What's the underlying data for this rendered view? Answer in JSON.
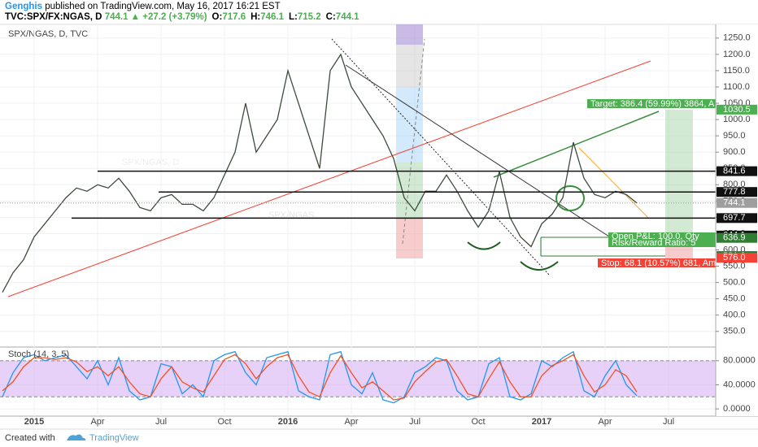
{
  "header": {
    "author": "Genghis",
    "published": "published on TradingView.com, May 16, 2017 16:21 EST",
    "symbol": "TVC:SPX/FX:NGAS, D",
    "last": 744.1,
    "change": "▲ +27.2 (+3.79%)",
    "ohlc": [
      {
        "label": "O:",
        "value": 717.6
      },
      {
        "label": "H:",
        "value": 746.1
      },
      {
        "label": "L:",
        "value": 715.2
      },
      {
        "label": "C:",
        "value": 744.1
      }
    ]
  },
  "footer": {
    "created": "Created with",
    "brand": "TradingView"
  },
  "chart_data": [
    {
      "type": "line",
      "title": "SPX/NGAS, D, TVC",
      "watermark": "SPX/NGAS, D",
      "watermark_small": "SPX/NGAS",
      "categories": [
        null,
        null,
        null,
        "2015",
        null,
        null,
        null,
        null,
        null,
        "Apr",
        null,
        null,
        null,
        null,
        null,
        "Jul",
        null,
        null,
        null,
        null,
        null,
        "Oct",
        null,
        null,
        null,
        null,
        null,
        "2016",
        null,
        null,
        null,
        null,
        null,
        "Apr",
        null,
        null,
        null,
        null,
        null,
        "Jul",
        null,
        null,
        null,
        null,
        null,
        "Oct",
        null,
        null,
        null,
        null,
        null,
        "2017",
        null,
        null,
        null,
        null,
        null,
        "Apr",
        null,
        null,
        null,
        null,
        null,
        "Jul",
        null,
        null,
        null,
        null
      ],
      "series": [
        {
          "color": "#3d4a3d",
          "values": [
            470,
            530,
            570,
            640,
            680,
            720,
            760,
            790,
            780,
            800,
            790,
            820,
            780,
            730,
            720,
            760,
            770,
            740,
            740,
            720,
            760,
            830,
            900,
            1050,
            900,
            950,
            1000,
            1150,
            1050,
            950,
            850,
            1150,
            1200,
            1100,
            1050,
            1000,
            950,
            880,
            760,
            720,
            780,
            780,
            830,
            780,
            720,
            670,
            720,
            840,
            700,
            640,
            610,
            680,
            710,
            760,
            930,
            820,
            770,
            760,
            780,
            770,
            744.1,
            null,
            null,
            null,
            null,
            null,
            null,
            null
          ]
        }
      ],
      "ylim": [
        307,
        1292
      ],
      "yticks": [
        {
          "value": 350,
          "label": "350.0"
        },
        {
          "value": 400,
          "label": "400.0"
        },
        {
          "value": 450,
          "label": "450.0"
        },
        {
          "value": 500,
          "label": "500.0"
        },
        {
          "value": 550,
          "label": "550.0"
        },
        {
          "value": 600,
          "label": "600.0"
        },
        {
          "value": 650,
          "label": "650.0"
        },
        {
          "value": 700,
          "label": "700.0"
        },
        {
          "value": 750,
          "label": "750.0"
        },
        {
          "value": 800,
          "label": "800.0"
        },
        {
          "value": 850,
          "label": "850.0"
        },
        {
          "value": 900,
          "label": "900.0"
        },
        {
          "value": 950,
          "label": "950.0"
        },
        {
          "value": 1000,
          "label": "1000.0"
        },
        {
          "value": 1050,
          "label": "1050.0"
        },
        {
          "value": 1100,
          "label": "1100.0"
        },
        {
          "value": 1150,
          "label": "1150.0"
        },
        {
          "value": 1200,
          "label": "1200.0"
        },
        {
          "value": 1250,
          "label": "1250.0"
        }
      ],
      "grid": true,
      "levels": [
        {
          "value": 1030.5,
          "color": "#4caf50"
        },
        {
          "value": 841.6,
          "color": "#111111"
        },
        {
          "value": 777.8,
          "color": "#111111"
        },
        {
          "value": 744.1,
          "color": "#9e9e9e"
        },
        {
          "value": 697.7,
          "color": "#111111"
        },
        {
          "value": 644.1,
          "color": "#111111"
        },
        {
          "value": 636.9,
          "color": "#2e7d32"
        },
        {
          "value": 581.2,
          "color": "#2e7d32"
        },
        {
          "value": 576,
          "label": "576.0",
          "color": "#f44336"
        }
      ],
      "annotations": {
        "target": "Target: 386.4 (59.99%) 3864, A",
        "pnl": "Open P&L: 100.0, Qty",
        "rr": "Risk/Reward Ratio: 5",
        "stop": "Stop: 68.1 (10.57%) 681, Am"
      }
    },
    {
      "type": "line",
      "title": "Stoch (14, 3, 5)",
      "series": [
        {
          "color": "#2196f3",
          "values": [
            20,
            60,
            85,
            90,
            80,
            85,
            90,
            70,
            50,
            80,
            40,
            85,
            30,
            15,
            20,
            75,
            70,
            25,
            40,
            20,
            80,
            90,
            95,
            60,
            40,
            85,
            90,
            95,
            30,
            20,
            15,
            90,
            95,
            40,
            25,
            60,
            15,
            10,
            20,
            60,
            70,
            85,
            80,
            30,
            15,
            20,
            75,
            85,
            20,
            15,
            25,
            80,
            70,
            85,
            95,
            30,
            20,
            55,
            80,
            40,
            22
          ]
        },
        {
          "color": "#f4511e",
          "values": [
            30,
            45,
            70,
            85,
            85,
            82,
            85,
            78,
            62,
            70,
            55,
            70,
            45,
            25,
            20,
            50,
            70,
            45,
            35,
            28,
            55,
            82,
            90,
            75,
            50,
            70,
            85,
            90,
            55,
            28,
            20,
            60,
            88,
            60,
            35,
            45,
            30,
            15,
            18,
            45,
            62,
            78,
            82,
            55,
            25,
            20,
            50,
            78,
            45,
            20,
            20,
            55,
            72,
            80,
            90,
            55,
            28,
            40,
            65,
            55,
            28
          ]
        }
      ],
      "ylim": [
        -12,
        100
      ],
      "yticks": [
        {
          "value": 0,
          "label": "0.0000"
        },
        {
          "value": 40,
          "label": "40.0000"
        },
        {
          "value": 80,
          "label": "80.0000"
        }
      ],
      "bands": [
        20,
        80
      ]
    }
  ]
}
